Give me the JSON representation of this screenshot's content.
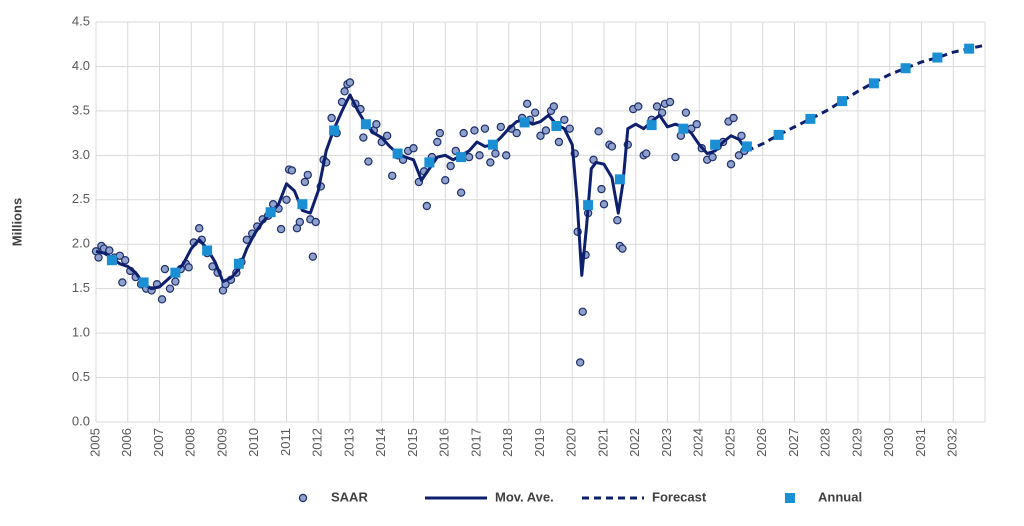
{
  "chart_data": {
    "type": "combo",
    "y_label": "Millions",
    "grid": true,
    "legend": "bottom",
    "xlim": [
      2005,
      2033
    ],
    "xticks": [
      2005,
      2006,
      2007,
      2008,
      2009,
      2010,
      2011,
      2012,
      2013,
      2014,
      2015,
      2016,
      2017,
      2018,
      2019,
      2020,
      2021,
      2022,
      2023,
      2024,
      2025,
      2026,
      2027,
      2028,
      2029,
      2030,
      2031,
      2032
    ],
    "ylim": [
      0,
      4.5
    ],
    "yticks": [
      {
        "value": 0,
        "label": "0.0"
      },
      {
        "value": 0.5,
        "label": "0.5"
      },
      {
        "value": 1,
        "label": "1.0"
      },
      {
        "value": 1.5,
        "label": "1.5"
      },
      {
        "value": 2,
        "label": "2.0"
      },
      {
        "value": 2.5,
        "label": "2.5"
      },
      {
        "value": 3,
        "label": "3.0"
      },
      {
        "value": 3.5,
        "label": "3.5"
      },
      {
        "value": 4,
        "label": "4.0"
      },
      {
        "value": 4.5,
        "label": "4.5"
      }
    ],
    "series": [
      {
        "name": "SAAR",
        "style": "points",
        "color": "#8ea0cc",
        "x": [
          2005.0,
          2005.08,
          2005.17,
          2005.25,
          2005.42,
          2005.58,
          2005.75,
          2005.83,
          2005.92,
          2006.08,
          2006.25,
          2006.42,
          2006.58,
          2006.75,
          2006.92,
          2007.08,
          2007.17,
          2007.33,
          2007.5,
          2007.67,
          2007.83,
          2007.92,
          2008.08,
          2008.25,
          2008.33,
          2008.5,
          2008.67,
          2008.83,
          2009.0,
          2009.08,
          2009.25,
          2009.42,
          2009.58,
          2009.75,
          2009.92,
          2010.08,
          2010.25,
          2010.42,
          2010.58,
          2010.75,
          2010.83,
          2011.0,
          2011.08,
          2011.17,
          2011.33,
          2011.42,
          2011.58,
          2011.67,
          2011.75,
          2011.83,
          2011.92,
          2012.08,
          2012.17,
          2012.25,
          2012.42,
          2012.58,
          2012.75,
          2012.83,
          2012.92,
          2013.0,
          2013.17,
          2013.33,
          2013.42,
          2013.58,
          2013.75,
          2013.83,
          2014.0,
          2014.17,
          2014.33,
          2014.5,
          2014.67,
          2014.83,
          2015.0,
          2015.17,
          2015.33,
          2015.42,
          2015.58,
          2015.75,
          2015.83,
          2016.0,
          2016.17,
          2016.33,
          2016.5,
          2016.58,
          2016.75,
          2016.92,
          2017.08,
          2017.25,
          2017.42,
          2017.58,
          2017.75,
          2017.92,
          2018.08,
          2018.25,
          2018.42,
          2018.58,
          2018.67,
          2018.83,
          2019.0,
          2019.17,
          2019.33,
          2019.42,
          2019.58,
          2019.75,
          2019.92,
          2020.08,
          2020.17,
          2020.25,
          2020.33,
          2020.42,
          2020.5,
          2020.67,
          2020.83,
          2020.92,
          2021.0,
          2021.17,
          2021.25,
          2021.42,
          2021.5,
          2021.58,
          2021.75,
          2021.92,
          2022.08,
          2022.25,
          2022.33,
          2022.5,
          2022.67,
          2022.83,
          2022.92,
          2023.08,
          2023.25,
          2023.42,
          2023.58,
          2023.75,
          2023.92,
          2024.08,
          2024.25,
          2024.42,
          2024.58,
          2024.75,
          2024.92,
          2025.0,
          2025.08,
          2025.25,
          2025.33,
          2025.42
        ],
        "values": [
          1.92,
          1.85,
          1.98,
          1.95,
          1.93,
          1.85,
          1.87,
          1.57,
          1.82,
          1.7,
          1.63,
          1.55,
          1.5,
          1.48,
          1.55,
          1.38,
          1.72,
          1.5,
          1.58,
          1.72,
          1.78,
          1.74,
          2.02,
          2.18,
          2.05,
          1.9,
          1.75,
          1.68,
          1.48,
          1.55,
          1.6,
          1.68,
          1.8,
          2.05,
          2.12,
          2.2,
          2.28,
          2.32,
          2.45,
          2.4,
          2.17,
          2.5,
          2.84,
          2.83,
          2.18,
          2.25,
          2.7,
          2.78,
          2.28,
          1.86,
          2.25,
          2.65,
          2.95,
          2.92,
          3.42,
          3.25,
          3.6,
          3.72,
          3.8,
          3.82,
          3.58,
          3.52,
          3.2,
          2.93,
          3.28,
          3.35,
          3.15,
          3.22,
          2.77,
          3.0,
          2.95,
          3.05,
          3.08,
          2.7,
          2.82,
          2.43,
          2.98,
          3.15,
          3.25,
          2.72,
          2.88,
          3.05,
          2.58,
          3.25,
          2.98,
          3.28,
          3.0,
          3.3,
          2.92,
          3.02,
          3.32,
          3.0,
          3.3,
          3.25,
          3.42,
          3.58,
          3.4,
          3.48,
          3.22,
          3.28,
          3.5,
          3.55,
          3.15,
          3.4,
          3.3,
          3.02,
          2.14,
          0.67,
          1.24,
          1.88,
          2.35,
          2.95,
          3.27,
          2.62,
          2.45,
          3.12,
          3.1,
          2.27,
          1.98,
          1.95,
          3.12,
          3.52,
          3.55,
          3.0,
          3.02,
          3.4,
          3.55,
          3.48,
          3.58,
          3.6,
          2.98,
          3.22,
          3.48,
          3.3,
          3.35,
          3.08,
          2.95,
          2.98,
          3.1,
          3.15,
          3.38,
          2.9,
          3.42,
          3.0,
          3.22,
          3.05
        ]
      },
      {
        "name": "Mov. Ave.",
        "style": "line",
        "color": "#0e1f6e",
        "x": [
          2005,
          2005.25,
          2005.5,
          2005.75,
          2006,
          2006.25,
          2006.5,
          2006.75,
          2007,
          2007.25,
          2007.5,
          2007.75,
          2008,
          2008.25,
          2008.5,
          2008.75,
          2009,
          2009.25,
          2009.5,
          2009.75,
          2010,
          2010.25,
          2010.5,
          2010.75,
          2011,
          2011.25,
          2011.5,
          2011.75,
          2012,
          2012.25,
          2012.5,
          2012.75,
          2013,
          2013.25,
          2013.5,
          2013.75,
          2014,
          2014.25,
          2014.5,
          2014.75,
          2015,
          2015.25,
          2015.5,
          2015.75,
          2016,
          2016.25,
          2016.5,
          2016.75,
          2017,
          2017.25,
          2017.5,
          2017.75,
          2018,
          2018.25,
          2018.5,
          2018.75,
          2019,
          2019.25,
          2019.5,
          2019.75,
          2020,
          2020.15,
          2020.3,
          2020.45,
          2020.6,
          2020.75,
          2021,
          2021.25,
          2021.45,
          2021.6,
          2021.75,
          2022,
          2022.25,
          2022.5,
          2022.75,
          2023,
          2023.25,
          2023.5,
          2023.75,
          2024,
          2024.25,
          2024.5,
          2024.75,
          2025,
          2025.25,
          2025.5
        ],
        "values": [
          1.92,
          1.9,
          1.85,
          1.78,
          1.75,
          1.68,
          1.55,
          1.5,
          1.52,
          1.6,
          1.68,
          1.78,
          1.95,
          2.05,
          1.95,
          1.8,
          1.58,
          1.62,
          1.72,
          1.95,
          2.12,
          2.25,
          2.35,
          2.45,
          2.68,
          2.6,
          2.38,
          2.35,
          2.6,
          3.05,
          3.3,
          3.5,
          3.68,
          3.5,
          3.35,
          3.25,
          3.2,
          3.1,
          3.02,
          2.98,
          2.95,
          2.72,
          2.85,
          2.98,
          3.0,
          2.95,
          3.0,
          3.05,
          3.15,
          3.1,
          3.12,
          3.2,
          3.3,
          3.38,
          3.4,
          3.35,
          3.38,
          3.45,
          3.35,
          3.3,
          3.12,
          2.5,
          1.65,
          2.2,
          2.85,
          2.92,
          2.9,
          2.75,
          2.35,
          2.7,
          3.3,
          3.35,
          3.3,
          3.38,
          3.45,
          3.32,
          3.35,
          3.32,
          3.25,
          3.12,
          3.02,
          3.05,
          3.15,
          3.22,
          3.18,
          3.05
        ]
      },
      {
        "name": "Forecast",
        "style": "dashed",
        "color": "#0e1f6e",
        "x": [
          2025.5,
          2026,
          2026.5,
          2027,
          2027.5,
          2028,
          2028.5,
          2029,
          2029.5,
          2030,
          2030.5,
          2031,
          2031.5,
          2032,
          2032.5,
          2033
        ],
        "values": [
          3.05,
          3.13,
          3.23,
          3.32,
          3.41,
          3.5,
          3.61,
          3.72,
          3.82,
          3.91,
          3.98,
          4.05,
          4.1,
          4.16,
          4.2,
          4.24
        ]
      },
      {
        "name": "Annual",
        "style": "squares",
        "color": "#1a8fd3",
        "x": [
          2005.5,
          2006.5,
          2007.5,
          2008.5,
          2009.5,
          2010.5,
          2011.5,
          2012.5,
          2013.5,
          2014.5,
          2015.5,
          2016.5,
          2017.5,
          2018.5,
          2019.5,
          2020.5,
          2021.5,
          2022.5,
          2023.5,
          2024.5,
          2025.5,
          2026.5,
          2027.5,
          2028.5,
          2029.5,
          2030.5,
          2031.5,
          2032.5
        ],
        "values": [
          1.82,
          1.57,
          1.68,
          1.93,
          1.78,
          2.36,
          2.45,
          3.28,
          3.35,
          3.02,
          2.92,
          2.98,
          3.12,
          3.37,
          3.33,
          2.44,
          2.73,
          3.34,
          3.3,
          3.12,
          3.1,
          3.23,
          3.41,
          3.61,
          3.81,
          3.98,
          4.1,
          4.2
        ]
      }
    ]
  }
}
